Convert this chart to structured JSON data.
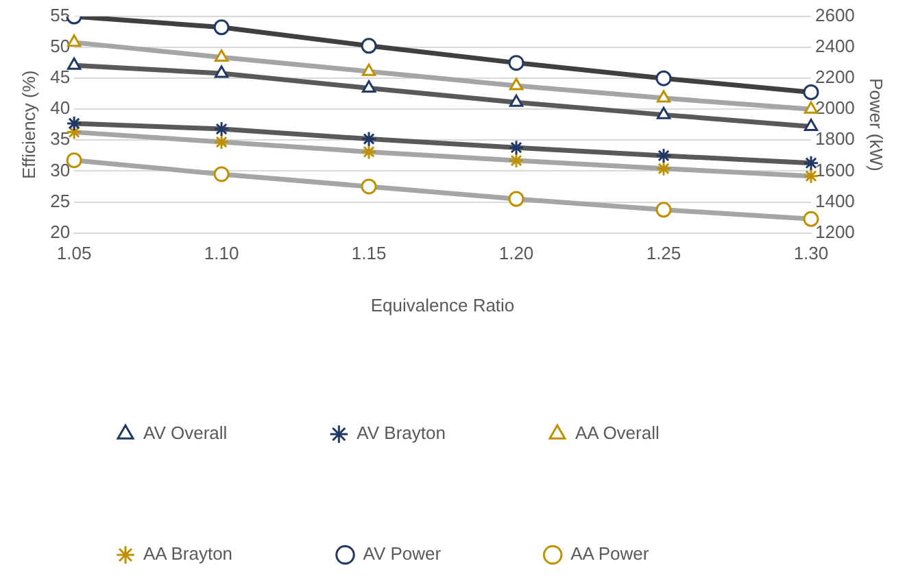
{
  "chart_data": {
    "type": "line",
    "xlabel": "Equivalence Ratio",
    "ylabel": "Efficiency (%)",
    "y2label": "Power (kW)",
    "categories": [
      "1.05",
      "1.10",
      "1.15",
      "1.20",
      "1.25",
      "1.30"
    ],
    "ylim": [
      20,
      55
    ],
    "yticks": [
      20,
      25,
      30,
      35,
      40,
      45,
      50,
      55
    ],
    "y2lim": [
      1200,
      2600
    ],
    "y2ticks": [
      1200,
      1400,
      1600,
      1800,
      2000,
      2200,
      2400,
      2600
    ],
    "grid": "y",
    "legend": "bottom",
    "series": [
      {
        "name": "AV Overall",
        "color": "#595959",
        "colors": [
          "#1f3864",
          "#1f3864",
          "#1f3864",
          "#1f3864",
          "#1f3864",
          "#1f3864"
        ],
        "marker": "triangle",
        "values": [
          47.1,
          45.8,
          43.4,
          41.1,
          39.1,
          37.2
        ]
      },
      {
        "name": "AV Brayton",
        "color": "#595959",
        "colors": [
          "#1f3864",
          "#1f3864",
          "#1f3864",
          "#1f3864",
          "#1f3864",
          "#1f3864"
        ],
        "marker": "cross",
        "values": [
          37.7,
          36.8,
          35.2,
          33.8,
          32.5,
          31.3
        ]
      },
      {
        "name": "AA Overall",
        "color": "#a5a5a5",
        "colors": [
          "#bf9000",
          "#bf9000",
          "#bf9000",
          "#bf9000",
          "#bf9000",
          "#bf9000"
        ],
        "marker": "triangle",
        "values": [
          50.8,
          48.4,
          46.1,
          43.8,
          41.8,
          40.0
        ]
      },
      {
        "name": "AA Brayton",
        "color": "#a5a5a5",
        "colors": [
          "#bf9000",
          "#bf9000",
          "#bf9000",
          "#bf9000",
          "#bf9000",
          "#bf9000"
        ],
        "marker": "cross",
        "values": [
          36.3,
          34.7,
          33.1,
          31.7,
          30.4,
          29.2
        ]
      },
      {
        "name": "AV Power",
        "color": "#404040",
        "colors": [
          "#1f3864",
          "#1f3864",
          "#1f3864",
          "#1f3864",
          "#1f3864",
          "#1f3864"
        ],
        "marker": "circle",
        "axis": "y2",
        "values": [
          2600,
          2530,
          2410,
          2300,
          2200,
          2110
        ]
      },
      {
        "name": "AA Power",
        "color": "#a5a5a5",
        "colors": [
          "#bf9000",
          "#bf9000",
          "#bf9000",
          "#bf9000",
          "#bf9000",
          "#bf9000"
        ],
        "marker": "circle",
        "axis": "y2",
        "values": [
          1670,
          1580,
          1500,
          1420,
          1350,
          1290
        ]
      }
    ]
  }
}
